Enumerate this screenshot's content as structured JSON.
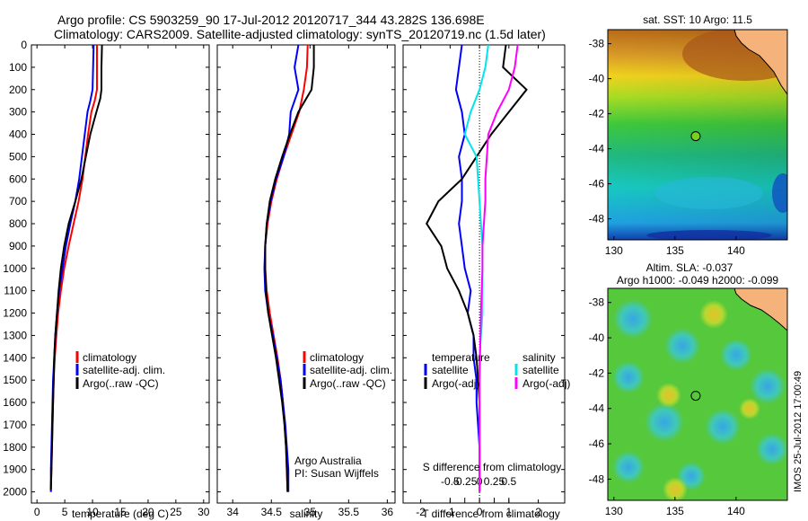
{
  "header": {
    "line1": "Argo profile: CS 5903259_90 17-Jul-2012 20120717_344 43.282S 136.698E",
    "line2": "Climatology: CARS2009. Satellite-adjusted climatology: synTS_20120719.nc (1.5d later)"
  },
  "colors": {
    "climatology": "#ff0000",
    "satellite": "#0000ff",
    "argo": "#000000",
    "salinity_satellite": "#00e5ee",
    "salinity_argo": "#ff00ff",
    "land": "#f5b27a"
  },
  "panels": {
    "temperature": {
      "xlabel": "temperature (deg C)",
      "legend": [
        "climatology",
        "satellite-adj. clim.",
        "Argo(..raw -QC)"
      ]
    },
    "salinity": {
      "xlabel": "salinity",
      "legend": [
        "climatology",
        "satellite-adj. clim.",
        "Argo(..raw -QC)"
      ],
      "note_line1": "Argo Australia",
      "note_line2": "PI: Susan Wijffels"
    },
    "difference": {
      "xlabel": "T difference from climatology",
      "xlabel_top": "S difference from climatology",
      "legend_headers": [
        "temperature",
        "salinity"
      ],
      "legend_t": [
        "satellite",
        "Argo(-adj)"
      ],
      "legend_s": [
        "satellite",
        "Argo(-adj)"
      ]
    }
  },
  "maps": {
    "sst": {
      "title": "sat. SST: 10 Argo: 11.5"
    },
    "sla": {
      "title1": "Altim. SLA: -0.037",
      "title2": "Argo h1000: -0.049 h2000: -0.099"
    },
    "float_position": {
      "lon": 136.698,
      "lat": -43.282
    },
    "timestamp": "IMOS 25-Jul-2012 17:00:49"
  },
  "chart_data": [
    {
      "type": "line",
      "name": "temperature profile",
      "xlabel": "temperature (deg C)",
      "ylabel": "",
      "xlim": [
        -1,
        31
      ],
      "ylim": [
        2050,
        0
      ],
      "xticks": [
        0,
        5,
        10,
        15,
        20,
        25,
        30
      ],
      "yticks": [
        0,
        100,
        200,
        300,
        400,
        500,
        600,
        700,
        800,
        900,
        1000,
        1100,
        1200,
        1300,
        1400,
        1500,
        1600,
        1700,
        1800,
        1900,
        2000
      ],
      "series": [
        {
          "name": "climatology",
          "color": "#ff0000",
          "x": [
            10.8,
            10.8,
            10.8,
            10.4,
            9.8,
            9.2,
            8.7,
            8.2,
            7.5,
            6.6,
            5.7,
            4.9,
            4.3,
            3.8,
            3.5,
            3.2,
            3.0,
            2.9,
            2.8,
            2.7,
            2.6,
            2.5,
            2.5
          ],
          "y": [
            0,
            100,
            200,
            250,
            300,
            400,
            500,
            600,
            700,
            800,
            900,
            1000,
            1100,
            1200,
            1300,
            1400,
            1500,
            1600,
            1700,
            1800,
            1900,
            1980,
            2000
          ]
        },
        {
          "name": "satellite-adj. clim.",
          "color": "#0000ff",
          "x": [
            10.2,
            10.1,
            10.0,
            9.6,
            9.1,
            8.6,
            8.1,
            7.6,
            6.9,
            6.0,
            5.2,
            4.6,
            4.0,
            3.6,
            3.3,
            3.1,
            2.9,
            2.8,
            2.7,
            2.6,
            2.5,
            2.5,
            2.5
          ],
          "y": [
            0,
            100,
            200,
            250,
            300,
            400,
            500,
            600,
            700,
            800,
            900,
            1000,
            1100,
            1200,
            1300,
            1400,
            1500,
            1600,
            1700,
            1800,
            1900,
            1980,
            2000
          ]
        },
        {
          "name": "Argo(..raw -QC)",
          "color": "#000000",
          "x": [
            11.7,
            11.6,
            11.6,
            11.4,
            10.7,
            9.6,
            8.8,
            8.0,
            6.9,
            5.7,
            4.9,
            4.3,
            3.9,
            3.6,
            3.3,
            3.1,
            3.0,
            2.9,
            2.8,
            2.7,
            2.6,
            2.5
          ],
          "y": [
            0,
            100,
            200,
            240,
            300,
            400,
            500,
            600,
            700,
            800,
            900,
            1000,
            1100,
            1200,
            1300,
            1400,
            1500,
            1600,
            1700,
            1800,
            1900,
            1990
          ]
        }
      ]
    },
    {
      "type": "line",
      "name": "salinity profile",
      "xlabel": "salinity",
      "ylabel": "",
      "xlim": [
        33.8,
        36.1
      ],
      "ylim": [
        2050,
        0
      ],
      "xticks": [
        34,
        34.5,
        35,
        35.5,
        36
      ],
      "series": [
        {
          "name": "climatology",
          "color": "#ff0000",
          "x": [
            34.97,
            34.96,
            34.92,
            34.86,
            34.76,
            34.66,
            34.57,
            34.5,
            34.45,
            34.42,
            34.42,
            34.44,
            34.48,
            34.53,
            34.58,
            34.62,
            34.65,
            34.67,
            34.69,
            34.7,
            34.71
          ],
          "y": [
            0,
            100,
            200,
            300,
            400,
            500,
            600,
            700,
            800,
            900,
            1000,
            1100,
            1200,
            1300,
            1400,
            1500,
            1600,
            1700,
            1800,
            1900,
            2000
          ]
        },
        {
          "name": "satellite-adj. clim.",
          "color": "#0000ff",
          "x": [
            34.85,
            34.8,
            34.85,
            34.75,
            34.73,
            34.66,
            34.56,
            34.49,
            34.44,
            34.42,
            34.41,
            34.42,
            34.46,
            34.52,
            34.57,
            34.62,
            34.65,
            34.68,
            34.7,
            34.72,
            34.72
          ],
          "y": [
            0,
            100,
            200,
            300,
            400,
            500,
            600,
            700,
            800,
            900,
            1000,
            1100,
            1200,
            1300,
            1400,
            1500,
            1600,
            1700,
            1800,
            1900,
            2000
          ]
        },
        {
          "name": "Argo(..raw -QC)",
          "color": "#000000",
          "x": [
            35.05,
            35.05,
            35.02,
            34.85,
            34.74,
            34.64,
            34.55,
            34.48,
            34.44,
            34.42,
            34.42,
            34.43,
            34.46,
            34.51,
            34.56,
            34.6,
            34.64,
            34.67,
            34.69,
            34.7,
            34.71
          ],
          "y": [
            0,
            100,
            200,
            300,
            400,
            500,
            600,
            700,
            800,
            900,
            1000,
            1100,
            1200,
            1300,
            1400,
            1500,
            1600,
            1700,
            1800,
            1900,
            2000
          ]
        }
      ]
    },
    {
      "type": "line",
      "name": "difference from climatology",
      "xlabel": "T difference from climatology",
      "xlabel_top": "S difference from climatology",
      "xlim": [
        -2.6,
        2.9
      ],
      "ylim": [
        2050,
        0
      ],
      "xticks": [
        -2,
        -1,
        0,
        1,
        2
      ],
      "xticks_top": [
        -0.5,
        -0.25,
        0,
        0.25,
        0.5
      ],
      "series": [
        {
          "name": "temperature satellite",
          "color": "#0000ff",
          "x": [
            -0.6,
            -0.7,
            -0.8,
            -0.6,
            -0.5,
            -0.7,
            -0.6,
            -0.6,
            -0.7,
            -0.6,
            -0.5,
            -0.3,
            -0.4,
            -0.2,
            -0.2,
            -0.1,
            -0.1,
            -0.05,
            0,
            0
          ],
          "y": [
            0,
            100,
            200,
            300,
            400,
            500,
            600,
            700,
            800,
            900,
            1000,
            1100,
            1200,
            1300,
            1400,
            1500,
            1600,
            1700,
            1800,
            2000
          ]
        },
        {
          "name": "temperature Argo(-adj)",
          "color": "#000000",
          "x": [
            0.9,
            0.8,
            1.6,
            1.0,
            0.4,
            -0.1,
            -0.6,
            -1.4,
            -1.8,
            -1.3,
            -1.1,
            -0.7,
            -0.4,
            -0.2,
            -0.1,
            -0.05,
            0,
            0,
            0,
            0
          ],
          "y": [
            0,
            100,
            200,
            300,
            400,
            500,
            600,
            700,
            800,
            900,
            1000,
            1100,
            1200,
            1300,
            1400,
            1500,
            1600,
            1700,
            1800,
            2000
          ]
        },
        {
          "name": "salinity satellite",
          "color": "#00e5ee",
          "x": [
            0.3,
            0.2,
            0.0,
            -0.3,
            -0.5,
            -0.1,
            -0.05,
            0,
            0.05,
            0.1,
            0.1,
            0.1,
            0.1,
            0.05,
            0,
            0,
            0,
            0
          ],
          "y": [
            0,
            100,
            200,
            300,
            400,
            500,
            600,
            700,
            800,
            900,
            1000,
            1100,
            1200,
            1300,
            1400,
            1600,
            1800,
            2000
          ]
        },
        {
          "name": "salinity Argo(-adj)",
          "color": "#ff00ff",
          "x": [
            1.3,
            1.2,
            1.0,
            0.6,
            0.3,
            0.25,
            0.2,
            0.2,
            0.15,
            0.1,
            0.1,
            0.05,
            0,
            0
          ],
          "y": [
            0,
            100,
            200,
            300,
            400,
            500,
            600,
            700,
            800,
            900,
            1000,
            1200,
            1500,
            2000
          ]
        }
      ]
    },
    {
      "type": "heatmap",
      "name": "sat. SST map",
      "title": "sat. SST: 10 Argo: 11.5",
      "xlim": [
        129.5,
        144.2
      ],
      "ylim": [
        -49.2,
        -37.2
      ],
      "xticks": [
        130,
        135,
        140
      ],
      "yticks": [
        -38,
        -40,
        -42,
        -44,
        -46,
        -48
      ],
      "float_marker": {
        "lon": 136.698,
        "lat": -43.282
      }
    },
    {
      "type": "heatmap",
      "name": "Altim. SLA map",
      "title": "Altim. SLA: -0.037",
      "subtitle": "Argo h1000: -0.049 h2000: -0.099",
      "xlim": [
        129.5,
        144.2
      ],
      "ylim": [
        -49.2,
        -37.2
      ],
      "xticks": [
        130,
        135,
        140
      ],
      "yticks": [
        -38,
        -40,
        -42,
        -44,
        -46,
        -48
      ],
      "float_marker": {
        "lon": 136.698,
        "lat": -43.282
      }
    }
  ]
}
